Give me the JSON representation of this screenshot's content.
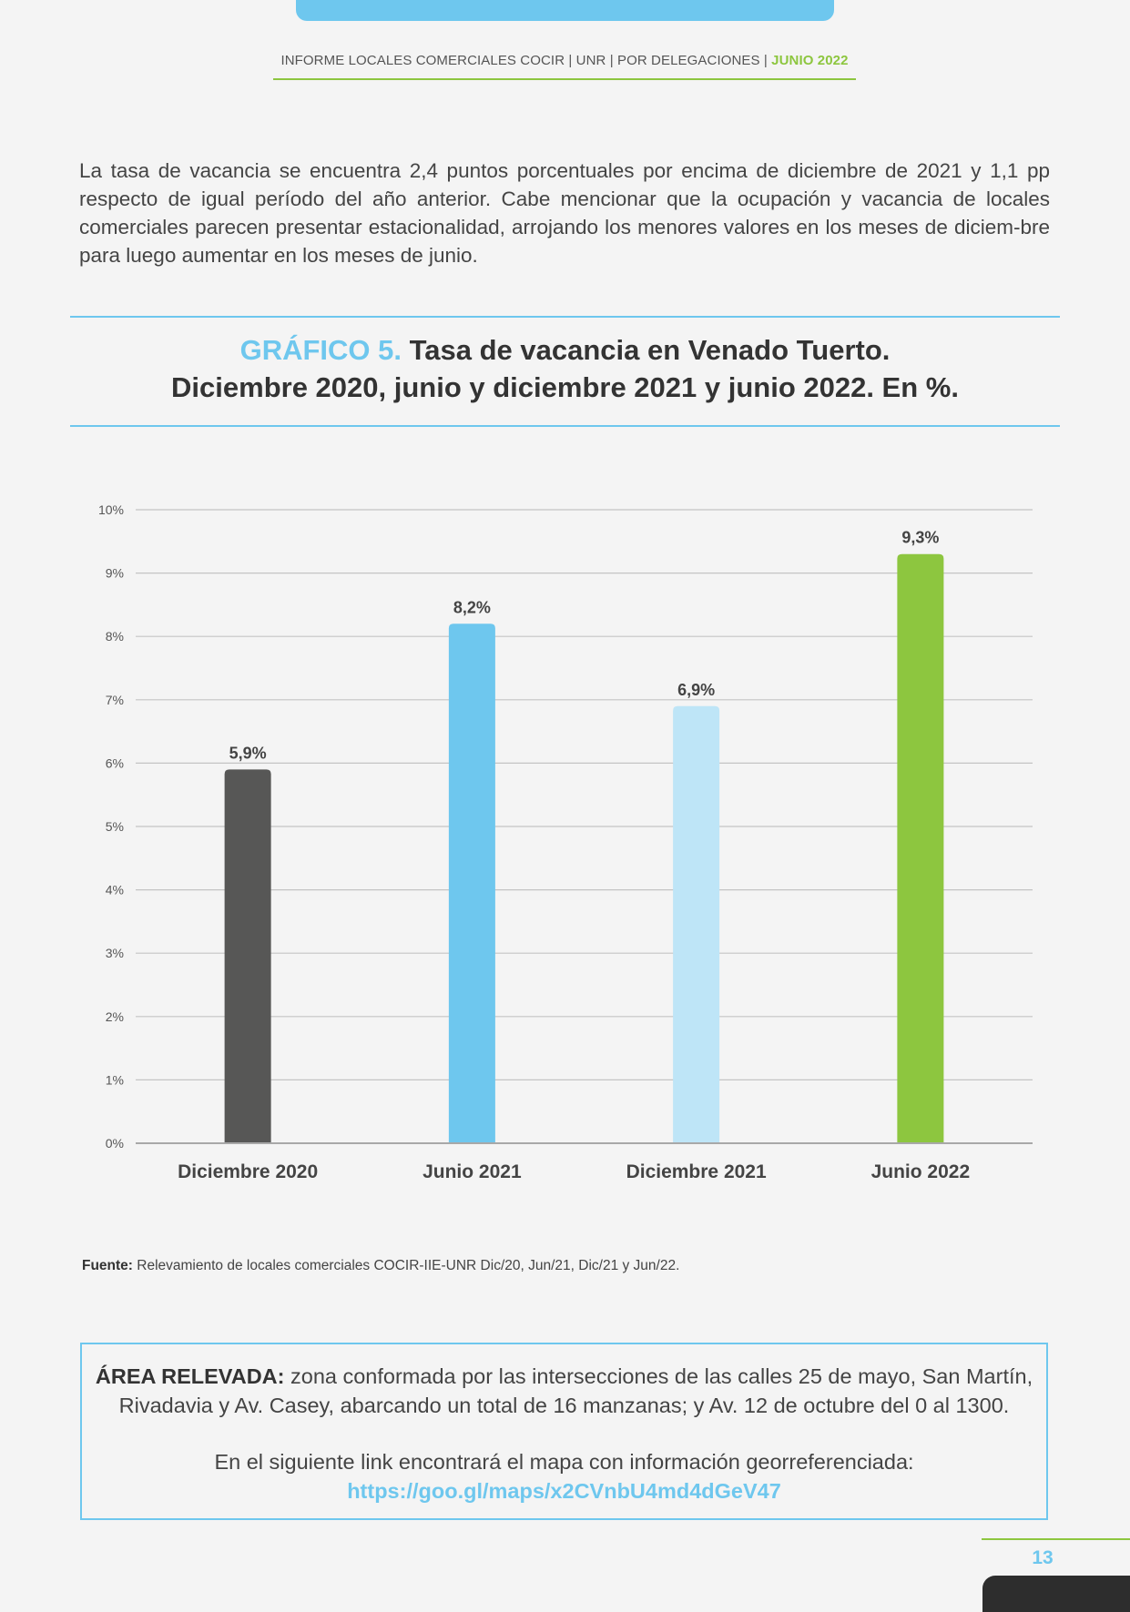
{
  "header": {
    "text": "INFORME LOCALES COMERCIALES COCIR | UNR | POR DELEGACIONES | ",
    "accent": "JUNIO 2022"
  },
  "intro": "La tasa de vacancia se encuentra 2,4 puntos porcentuales por encima de diciembre de 2021 y 1,1 pp respecto de igual período del año anterior. Cabe mencionar que la ocupación y vacancia de locales comerciales parecen presentar estacionalidad, arrojando los menores valores en los meses de diciem-bre para luego aumentar en los meses de junio.",
  "chart_title": {
    "lead": "GRÁFICO 5.",
    "rest": " Tasa de vacancia en Venado Tuerto.",
    "line2": "Diciembre 2020, junio y diciembre 2021 y junio 2022. En %."
  },
  "chart_data": {
    "type": "bar",
    "categories": [
      "Diciembre 2020",
      "Junio 2021",
      "Diciembre 2021",
      "Junio 2022"
    ],
    "values": [
      5.9,
      8.2,
      6.9,
      9.3
    ],
    "value_labels": [
      "5,9%",
      "8,2%",
      "6,9%",
      "9,3%"
    ],
    "colors": [
      "#575756",
      "#6ec7ee",
      "#bee5f7",
      "#8dc63f"
    ],
    "yticks": [
      "0%",
      "1%",
      "2%",
      "3%",
      "4%",
      "5%",
      "6%",
      "7%",
      "8%",
      "9%",
      "10%"
    ],
    "ylim": [
      0,
      10
    ],
    "grid": true,
    "xlabel": "",
    "ylabel": ""
  },
  "source": {
    "label": "Fuente:",
    "text": " Relevamiento de locales comerciales COCIR-IIE-UNR Dic/20, Jun/21, Dic/21 y Jun/22."
  },
  "area": {
    "label": "ÁREA RELEVADA:",
    "text": " zona conformada por las intersecciones de las calles 25 de mayo, San Martín, Rivadavia y Av. Casey, abarcando un total de 16 manzanas; y Av. 12 de octubre del 0 al 1300.",
    "link_intro": "En el siguiente link encontrará el mapa con información georreferenciada:",
    "link": "https://goo.gl/maps/x2CVnbU4md4dGeV47"
  },
  "page_number": "13"
}
